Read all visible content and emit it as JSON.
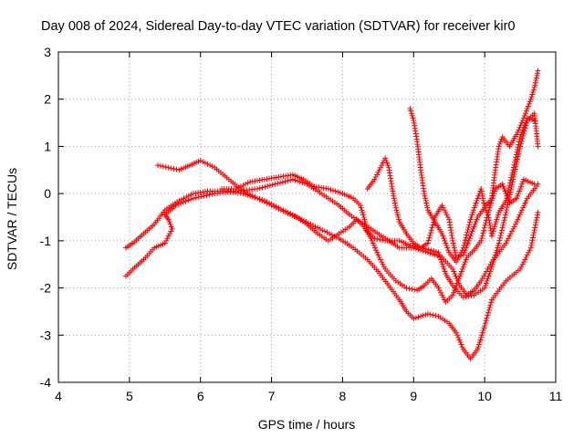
{
  "chart_data": {
    "type": "scatter",
    "title": "Day 008 of 2024, Sidereal Day-to-day VTEC variation (SDTVAR) for receiver kir0",
    "xlabel": "GPS time / hours",
    "ylabel": "SDTVAR / TECUs",
    "xlim": [
      4,
      11
    ],
    "ylim": [
      -4,
      3
    ],
    "xticks": [
      "4",
      "5",
      "6",
      "7",
      "8",
      "9",
      "10",
      "11"
    ],
    "yticks": [
      "-4",
      "-3",
      "-2",
      "-1",
      "0",
      "1",
      "2",
      "3"
    ],
    "grid": true,
    "marker": "+",
    "color": "#ff0000",
    "series": [
      {
        "points": [
          [
            4.95,
            -1.15
          ],
          [
            5.05,
            -1.05
          ],
          [
            5.2,
            -0.85
          ],
          [
            5.35,
            -0.65
          ],
          [
            5.5,
            -0.35
          ],
          [
            5.7,
            -0.15
          ],
          [
            5.9,
            0.0
          ],
          [
            6.1,
            0.05
          ],
          [
            6.35,
            0.05
          ],
          [
            6.6,
            0.0
          ],
          [
            6.9,
            -0.15
          ],
          [
            7.1,
            -0.3
          ],
          [
            7.3,
            -0.45
          ],
          [
            7.55,
            -0.65
          ],
          [
            7.75,
            -0.8
          ],
          [
            7.95,
            -0.95
          ],
          [
            8.15,
            -1.15
          ],
          [
            8.35,
            -1.4
          ],
          [
            8.5,
            -1.65
          ],
          [
            8.65,
            -1.95
          ],
          [
            8.8,
            -2.25
          ],
          [
            8.9,
            -2.5
          ],
          [
            9.0,
            -2.65
          ],
          [
            9.1,
            -2.6
          ],
          [
            9.2,
            -2.55
          ],
          [
            9.35,
            -2.6
          ],
          [
            9.5,
            -2.75
          ],
          [
            9.6,
            -2.95
          ],
          [
            9.7,
            -3.3
          ],
          [
            9.8,
            -3.5
          ],
          [
            9.9,
            -3.3
          ],
          [
            10.0,
            -2.8
          ],
          [
            10.1,
            -2.25
          ],
          [
            10.3,
            -1.85
          ],
          [
            10.5,
            -1.6
          ],
          [
            10.65,
            -1.15
          ],
          [
            10.75,
            -0.4
          ]
        ]
      },
      {
        "points": [
          [
            4.95,
            -1.75
          ],
          [
            5.05,
            -1.6
          ],
          [
            5.2,
            -1.4
          ],
          [
            5.35,
            -1.15
          ],
          [
            5.5,
            -1.05
          ],
          [
            5.6,
            -0.75
          ],
          [
            5.55,
            -0.55
          ],
          [
            5.5,
            -0.45
          ],
          [
            5.65,
            -0.25
          ],
          [
            5.9,
            -0.1
          ],
          [
            6.2,
            0.0
          ],
          [
            6.5,
            0.05
          ],
          [
            6.8,
            0.1
          ],
          [
            7.05,
            0.2
          ],
          [
            7.3,
            0.3
          ],
          [
            7.5,
            0.2
          ],
          [
            7.65,
            0.05
          ],
          [
            7.8,
            -0.1
          ],
          [
            7.95,
            -0.25
          ],
          [
            8.1,
            -0.45
          ],
          [
            8.25,
            -0.6
          ],
          [
            8.4,
            -0.75
          ],
          [
            8.6,
            -0.95
          ],
          [
            8.8,
            -1.15
          ],
          [
            9.0,
            -1.15
          ],
          [
            9.2,
            -1.25
          ],
          [
            9.4,
            -1.35
          ],
          [
            9.55,
            -1.6
          ],
          [
            9.65,
            -1.95
          ],
          [
            9.75,
            -2.15
          ],
          [
            9.85,
            -2.05
          ],
          [
            9.95,
            -1.85
          ],
          [
            10.1,
            -1.45
          ],
          [
            10.3,
            -1.05
          ],
          [
            10.45,
            -0.6
          ],
          [
            10.6,
            -0.1
          ],
          [
            10.75,
            0.2
          ]
        ]
      },
      {
        "points": [
          [
            5.4,
            0.6
          ],
          [
            5.55,
            0.55
          ],
          [
            5.7,
            0.5
          ],
          [
            5.85,
            0.6
          ],
          [
            6.0,
            0.7
          ],
          [
            6.2,
            0.55
          ],
          [
            6.4,
            0.3
          ],
          [
            6.6,
            0.05
          ],
          [
            6.8,
            -0.1
          ],
          [
            7.0,
            -0.25
          ],
          [
            7.2,
            -0.4
          ],
          [
            7.35,
            -0.5
          ],
          [
            7.5,
            -0.65
          ],
          [
            7.65,
            -0.85
          ],
          [
            7.8,
            -1.0
          ],
          [
            7.95,
            -0.85
          ],
          [
            8.1,
            -0.7
          ],
          [
            8.2,
            -0.55
          ],
          [
            8.3,
            -0.7
          ],
          [
            8.4,
            -0.95
          ],
          [
            8.5,
            -1.3
          ],
          [
            8.6,
            -1.6
          ],
          [
            8.75,
            -1.85
          ],
          [
            8.9,
            -2.0
          ],
          [
            9.05,
            -2.05
          ],
          [
            9.15,
            -1.95
          ],
          [
            9.25,
            -1.8
          ],
          [
            9.35,
            -2.0
          ],
          [
            9.45,
            -2.3
          ],
          [
            9.55,
            -2.15
          ],
          [
            9.65,
            -1.75
          ],
          [
            9.75,
            -1.35
          ],
          [
            9.85,
            -1.2
          ],
          [
            9.95,
            -1.0
          ],
          [
            10.05,
            -0.4
          ],
          [
            10.15,
            0.1
          ],
          [
            10.25,
            0.2
          ],
          [
            10.35,
            -0.2
          ],
          [
            10.45,
            -0.1
          ],
          [
            10.55,
            0.3
          ],
          [
            10.7,
            0.2
          ]
        ]
      },
      {
        "points": [
          [
            6.3,
            0.1
          ],
          [
            6.5,
            0.1
          ],
          [
            6.7,
            0.25
          ],
          [
            6.9,
            0.3
          ],
          [
            7.1,
            0.35
          ],
          [
            7.3,
            0.4
          ],
          [
            7.45,
            0.3
          ],
          [
            7.6,
            0.15
          ],
          [
            7.8,
            0.1
          ],
          [
            8.0,
            0.0
          ],
          [
            8.15,
            -0.1
          ],
          [
            8.25,
            -0.25
          ],
          [
            8.3,
            -0.5
          ],
          [
            8.35,
            -0.8
          ],
          [
            8.45,
            -0.95
          ],
          [
            8.6,
            -1.0
          ],
          [
            8.8,
            -1.0
          ],
          [
            8.95,
            -1.1
          ],
          [
            9.1,
            -1.15
          ],
          [
            9.25,
            -1.2
          ],
          [
            9.35,
            -1.25
          ],
          [
            9.45,
            -1.7
          ],
          [
            9.55,
            -1.95
          ],
          [
            9.7,
            -2.2
          ],
          [
            9.85,
            -2.15
          ],
          [
            10.0,
            -2.0
          ],
          [
            10.1,
            -1.55
          ],
          [
            10.2,
            -1.05
          ],
          [
            10.3,
            -0.4
          ],
          [
            10.4,
            0.3
          ],
          [
            10.5,
            1.0
          ],
          [
            10.6,
            1.55
          ],
          [
            10.7,
            1.7
          ],
          [
            10.75,
            1.0
          ]
        ]
      },
      {
        "points": [
          [
            8.35,
            0.1
          ],
          [
            8.45,
            0.3
          ],
          [
            8.55,
            0.6
          ],
          [
            8.6,
            0.75
          ],
          [
            8.65,
            0.55
          ],
          [
            8.7,
            0.1
          ],
          [
            8.75,
            -0.3
          ],
          [
            8.8,
            -0.6
          ],
          [
            8.9,
            -0.85
          ],
          [
            9.0,
            -1.05
          ],
          [
            9.1,
            -1.15
          ],
          [
            9.2,
            -1.05
          ],
          [
            9.3,
            -0.5
          ],
          [
            9.4,
            -0.25
          ],
          [
            9.5,
            -0.55
          ],
          [
            9.55,
            -1.0
          ],
          [
            9.6,
            -1.35
          ],
          [
            9.7,
            -1.3
          ],
          [
            9.8,
            -0.9
          ],
          [
            9.9,
            -0.5
          ],
          [
            10.0,
            -0.3
          ],
          [
            10.05,
            -0.45
          ],
          [
            10.1,
            -0.9
          ],
          [
            10.2,
            -0.4
          ],
          [
            10.3,
            -0.15
          ],
          [
            10.4,
            0.5
          ],
          [
            10.5,
            1.2
          ],
          [
            10.6,
            1.6
          ],
          [
            10.7,
            1.55
          ]
        ]
      },
      {
        "points": [
          [
            8.95,
            1.8
          ],
          [
            9.0,
            1.55
          ],
          [
            9.05,
            1.1
          ],
          [
            9.1,
            0.5
          ],
          [
            9.15,
            0.0
          ],
          [
            9.2,
            -0.35
          ],
          [
            9.3,
            -0.6
          ],
          [
            9.4,
            -0.85
          ],
          [
            9.5,
            -1.25
          ],
          [
            9.6,
            -1.45
          ],
          [
            9.7,
            -1.15
          ],
          [
            9.8,
            -0.55
          ],
          [
            9.9,
            -0.1
          ],
          [
            9.95,
            0.1
          ],
          [
            10.0,
            -0.3
          ],
          [
            10.1,
            -0.1
          ],
          [
            10.15,
            0.5
          ],
          [
            10.2,
            1.0
          ],
          [
            10.25,
            1.2
          ],
          [
            10.35,
            1.0
          ],
          [
            10.45,
            1.25
          ],
          [
            10.55,
            1.6
          ],
          [
            10.65,
            2.0
          ],
          [
            10.7,
            2.25
          ],
          [
            10.75,
            2.6
          ]
        ]
      }
    ]
  }
}
